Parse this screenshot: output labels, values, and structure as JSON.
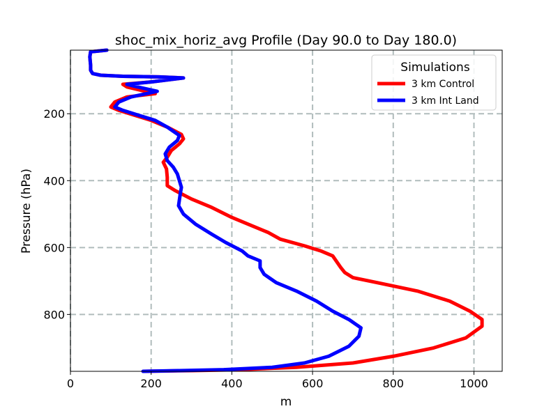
{
  "chart_data": {
    "type": "line",
    "title": "shoc_mix_horiz_avg Profile (Day 90.0 to Day 180.0)",
    "xlabel": "m",
    "ylabel": "Pressure (hPa)",
    "xlim": [
      0,
      1070
    ],
    "ylim": [
      970,
      10
    ],
    "y_inverted": true,
    "grid": true,
    "x_ticks": [
      0,
      200,
      400,
      600,
      800,
      1000
    ],
    "y_ticks": [
      200,
      400,
      600,
      800
    ],
    "x_tick_labels": [
      "0",
      "200",
      "400",
      "600",
      "800",
      "1000"
    ],
    "y_tick_labels": [
      "200",
      "400",
      "600",
      "800"
    ],
    "legend": {
      "title": "Simulations",
      "placement": "top-right"
    },
    "series": [
      {
        "name": "3 km Control",
        "color": "#ff0000",
        "points": [
          [
            90,
            10
          ],
          [
            50,
            15
          ],
          [
            48,
            30
          ],
          [
            50,
            55
          ],
          [
            50,
            70
          ],
          [
            55,
            80
          ],
          [
            75,
            85
          ],
          [
            130,
            88
          ],
          [
            220,
            90
          ],
          [
            280,
            93
          ],
          [
            200,
            105
          ],
          [
            130,
            112
          ],
          [
            140,
            120
          ],
          [
            210,
            140
          ],
          [
            140,
            150
          ],
          [
            110,
            165
          ],
          [
            100,
            180
          ],
          [
            120,
            190
          ],
          [
            160,
            205
          ],
          [
            200,
            220
          ],
          [
            240,
            240
          ],
          [
            275,
            262
          ],
          [
            280,
            275
          ],
          [
            270,
            290
          ],
          [
            250,
            310
          ],
          [
            240,
            330
          ],
          [
            230,
            345
          ],
          [
            238,
            365
          ],
          [
            240,
            390
          ],
          [
            240,
            415
          ],
          [
            260,
            430
          ],
          [
            300,
            455
          ],
          [
            350,
            480
          ],
          [
            400,
            510
          ],
          [
            440,
            530
          ],
          [
            490,
            555
          ],
          [
            520,
            575
          ],
          [
            580,
            595
          ],
          [
            620,
            610
          ],
          [
            650,
            625
          ],
          [
            670,
            660
          ],
          [
            680,
            675
          ],
          [
            700,
            690
          ],
          [
            760,
            705
          ],
          [
            860,
            730
          ],
          [
            940,
            760
          ],
          [
            990,
            790
          ],
          [
            1020,
            815
          ],
          [
            1020,
            835
          ],
          [
            980,
            870
          ],
          [
            900,
            900
          ],
          [
            800,
            925
          ],
          [
            700,
            945
          ],
          [
            560,
            958
          ],
          [
            420,
            965
          ],
          [
            300,
            968
          ],
          [
            180,
            970
          ]
        ]
      },
      {
        "name": "3 km Int Land",
        "color": "#0000ff",
        "points": [
          [
            90,
            10
          ],
          [
            50,
            15
          ],
          [
            48,
            30
          ],
          [
            50,
            55
          ],
          [
            50,
            70
          ],
          [
            55,
            80
          ],
          [
            75,
            85
          ],
          [
            130,
            88
          ],
          [
            220,
            90
          ],
          [
            280,
            93
          ],
          [
            200,
            105
          ],
          [
            140,
            112
          ],
          [
            160,
            118
          ],
          [
            215,
            133
          ],
          [
            150,
            150
          ],
          [
            120,
            165
          ],
          [
            110,
            180
          ],
          [
            130,
            190
          ],
          [
            170,
            205
          ],
          [
            210,
            220
          ],
          [
            240,
            240
          ],
          [
            270,
            265
          ],
          [
            265,
            280
          ],
          [
            245,
            300
          ],
          [
            235,
            320
          ],
          [
            240,
            340
          ],
          [
            255,
            360
          ],
          [
            265,
            380
          ],
          [
            270,
            400
          ],
          [
            275,
            420
          ],
          [
            272,
            440
          ],
          [
            268,
            475
          ],
          [
            280,
            500
          ],
          [
            310,
            530
          ],
          [
            350,
            560
          ],
          [
            385,
            585
          ],
          [
            425,
            610
          ],
          [
            440,
            625
          ],
          [
            470,
            640
          ],
          [
            470,
            660
          ],
          [
            480,
            680
          ],
          [
            510,
            705
          ],
          [
            560,
            730
          ],
          [
            610,
            760
          ],
          [
            650,
            790
          ],
          [
            690,
            815
          ],
          [
            720,
            840
          ],
          [
            715,
            865
          ],
          [
            690,
            895
          ],
          [
            640,
            925
          ],
          [
            580,
            945
          ],
          [
            500,
            958
          ],
          [
            380,
            965
          ],
          [
            270,
            968
          ],
          [
            180,
            970
          ]
        ]
      }
    ]
  }
}
